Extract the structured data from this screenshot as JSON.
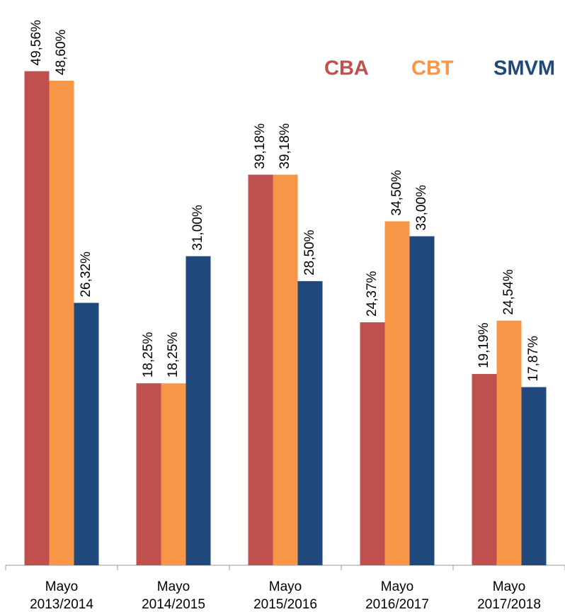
{
  "chart_data": {
    "type": "bar",
    "categories": [
      "Mayo\n2013/2014",
      "Mayo\n2014/2015",
      "Mayo\n2015/2016",
      "Mayo\n2016/2017",
      "Mayo\n2017/2018"
    ],
    "series": [
      {
        "name": "CBA",
        "color": "#c0504d",
        "values": [
          49.56,
          18.25,
          39.18,
          24.37,
          19.19
        ],
        "value_labels": [
          "49,56%",
          "18,25%",
          "39,18%",
          "24,37%",
          "19,19%"
        ]
      },
      {
        "name": "CBT",
        "color": "#f79646",
        "values": [
          48.6,
          18.25,
          39.18,
          34.5,
          24.54
        ],
        "value_labels": [
          "48,60%",
          "18,25%",
          "39,18%",
          "34,50%",
          "24,54%"
        ]
      },
      {
        "name": "SMVM",
        "color": "#1f497d",
        "values": [
          26.32,
          31.0,
          28.5,
          33.0,
          17.87
        ],
        "value_labels": [
          "26,32%",
          "31,00%",
          "28,50%",
          "33,00%",
          "17,87%"
        ]
      }
    ],
    "ylim": [
      0,
      56.7
    ],
    "legend": "top-right"
  }
}
